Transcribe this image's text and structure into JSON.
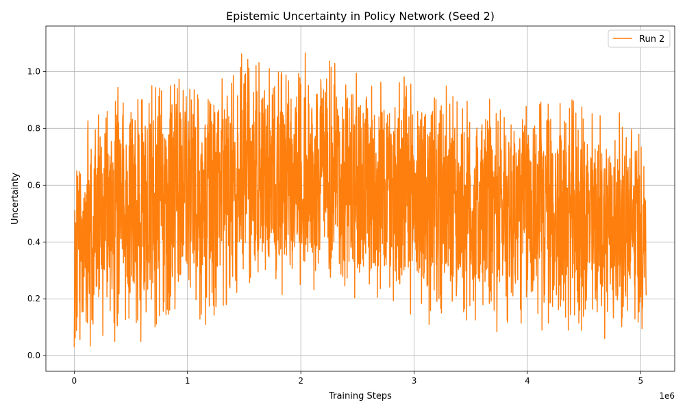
{
  "chart_data": {
    "type": "line",
    "title": "Epistemic Uncertainty in Policy Network (Seed 2)",
    "xlabel": "Training Steps",
    "ylabel": "Uncertainty",
    "x_scale_label": "1e6",
    "xlim": [
      -0.25,
      5.3
    ],
    "ylim": [
      -0.055,
      1.16
    ],
    "x_ticks": [
      0,
      1,
      2,
      3,
      4,
      5
    ],
    "x_tick_labels": [
      "0",
      "1",
      "2",
      "3",
      "4",
      "5"
    ],
    "y_ticks": [
      0.0,
      0.2,
      0.4,
      0.6,
      0.8,
      1.0
    ],
    "y_tick_labels": [
      "0.0",
      "0.2",
      "0.4",
      "0.6",
      "0.8",
      "1.0"
    ],
    "grid": true,
    "legend_position": "top-right",
    "series": [
      {
        "name": "Run 2",
        "color": "#ff7f0e",
        "x_range": [
          0,
          5.05
        ],
        "num_points": 2500,
        "sample_profile": {
          "x": [
            0,
            0.1,
            0.3,
            0.6,
            1.0,
            1.5,
            2.0,
            2.5,
            3.0,
            3.5,
            4.0,
            4.5,
            5.05
          ],
          "mean": [
            0.28,
            0.42,
            0.5,
            0.52,
            0.55,
            0.63,
            0.63,
            0.62,
            0.56,
            0.5,
            0.52,
            0.47,
            0.45
          ],
          "spread": [
            0.35,
            0.45,
            0.5,
            0.5,
            0.48,
            0.45,
            0.45,
            0.45,
            0.45,
            0.45,
            0.45,
            0.45,
            0.4
          ],
          "min": [
            0.03,
            0.03,
            0.05,
            0.05,
            0.02,
            0.0,
            0.0,
            0.1,
            0.15,
            0.0,
            0.09,
            0.09,
            0.0
          ],
          "max": [
            0.57,
            0.95,
            0.95,
            1.06,
            1.01,
            1.11,
            1.1,
            1.08,
            1.05,
            1.08,
            1.08,
            1.1,
            1.02
          ]
        }
      }
    ]
  }
}
